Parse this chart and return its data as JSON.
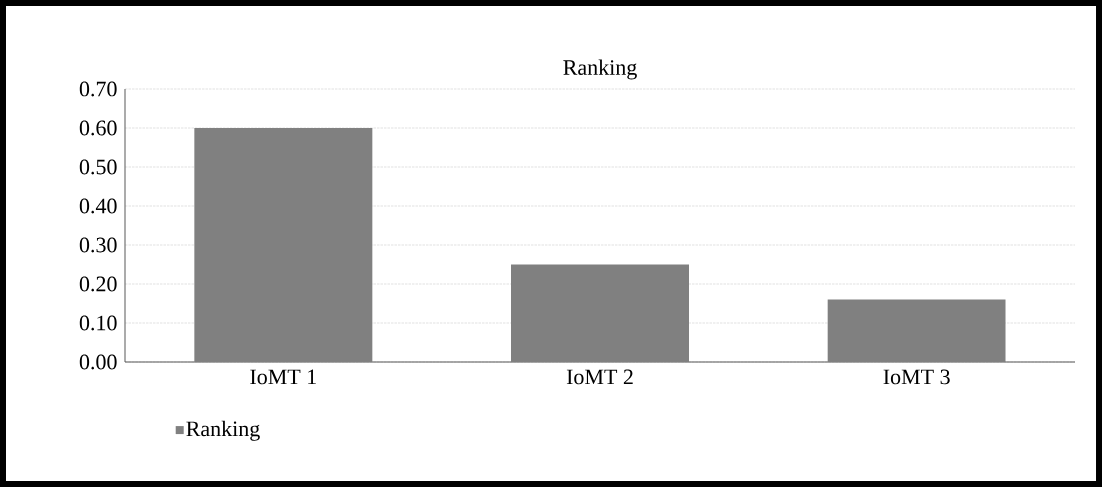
{
  "chart_data": {
    "type": "bar",
    "title": "Ranking",
    "categories": [
      "IoMT 1",
      "IoMT 2",
      "IoMT 3"
    ],
    "series": [
      {
        "name": "Ranking",
        "color": "#808080",
        "values": [
          0.6,
          0.25,
          0.16
        ]
      }
    ],
    "ylim": [
      0,
      0.7
    ],
    "yticks": [
      {
        "value": 0,
        "label": "0.00"
      },
      {
        "value": 0.1,
        "label": "0.10"
      },
      {
        "value": 0.2,
        "label": "0.20"
      },
      {
        "value": 0.3,
        "label": "0.30"
      },
      {
        "value": 0.4,
        "label": "0.40"
      },
      {
        "value": 0.5,
        "label": "0.50"
      },
      {
        "value": 0.6,
        "label": "0.60"
      },
      {
        "value": 0.7,
        "label": "0.70"
      }
    ],
    "grid": "y",
    "legend": "bottom left"
  }
}
